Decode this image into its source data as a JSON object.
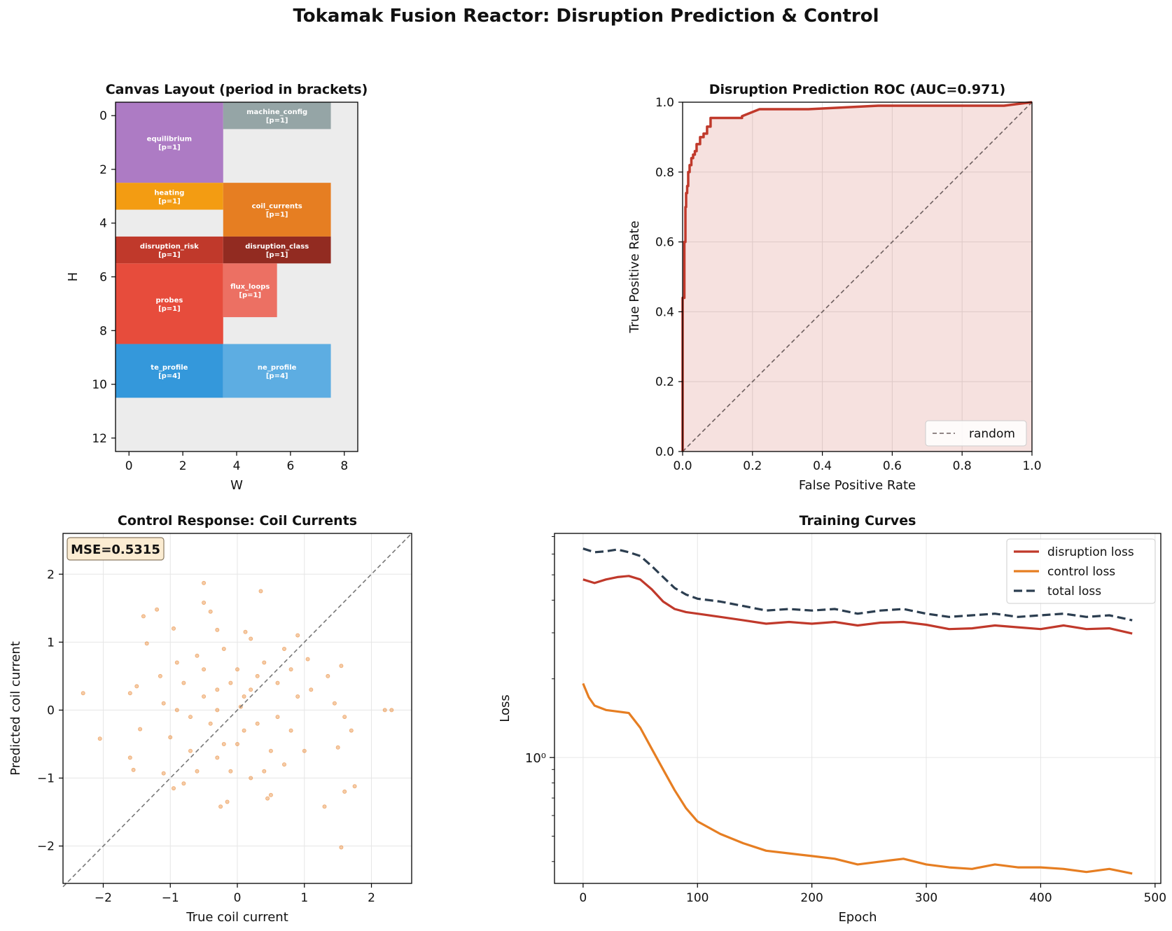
{
  "figure_title": "Tokamak Fusion Reactor: Disruption Prediction & Control",
  "chart_data": [
    {
      "type": "layout",
      "title": "Canvas Layout (period in brackets)",
      "xlabel": "W",
      "ylabel": "H",
      "xlim": [
        -0.5,
        8.5
      ],
      "ylim": [
        12.5,
        -0.5
      ],
      "xticks": [
        0,
        2,
        4,
        6,
        8
      ],
      "yticks": [
        0,
        2,
        4,
        6,
        8,
        10,
        12
      ],
      "background": "#ececec",
      "blocks": [
        {
          "name": "equilibrium",
          "period": "[p=1]",
          "x0": -0.5,
          "x1": 3.5,
          "y0": -0.5,
          "y1": 2.5,
          "color": "#ad7bc4"
        },
        {
          "name": "machine_config",
          "period": "[p=1]",
          "x0": 3.5,
          "x1": 7.5,
          "y0": -0.5,
          "y1": 0.5,
          "color": "#95a5a6"
        },
        {
          "name": "heating",
          "period": "[p=1]",
          "x0": -0.5,
          "x1": 3.5,
          "y0": 2.5,
          "y1": 3.5,
          "color": "#f39c12"
        },
        {
          "name": "coil_currents",
          "period": "[p=1]",
          "x0": 3.5,
          "x1": 7.5,
          "y0": 2.5,
          "y1": 4.5,
          "color": "#e67e22"
        },
        {
          "name": "disruption_risk",
          "period": "[p=1]",
          "x0": -0.5,
          "x1": 3.5,
          "y0": 4.5,
          "y1": 5.5,
          "color": "#c0392b"
        },
        {
          "name": "disruption_class",
          "period": "[p=1]",
          "x0": 3.5,
          "x1": 7.5,
          "y0": 4.5,
          "y1": 5.5,
          "color": "#922b21"
        },
        {
          "name": "probes",
          "period": "[p=1]",
          "x0": -0.5,
          "x1": 3.5,
          "y0": 5.5,
          "y1": 8.5,
          "color": "#e74c3c"
        },
        {
          "name": "flux_loops",
          "period": "[p=1]",
          "x0": 3.5,
          "x1": 5.5,
          "y0": 5.5,
          "y1": 7.5,
          "color": "#ec7063"
        },
        {
          "name": "te_profile",
          "period": "[p=4]",
          "x0": -0.5,
          "x1": 3.5,
          "y0": 8.5,
          "y1": 10.5,
          "color": "#3498db"
        },
        {
          "name": "ne_profile",
          "period": "[p=4]",
          "x0": 3.5,
          "x1": 7.5,
          "y0": 8.5,
          "y1": 10.5,
          "color": "#5dade2"
        }
      ]
    },
    {
      "type": "line",
      "title": "Disruption Prediction ROC (AUC=0.971)",
      "xlabel": "False Positive Rate",
      "ylabel": "True Positive Rate",
      "xlim": [
        0,
        1
      ],
      "ylim": [
        0,
        1
      ],
      "xticks": [
        0.0,
        0.2,
        0.4,
        0.6,
        0.8,
        1.0
      ],
      "yticks": [
        0.0,
        0.2,
        0.4,
        0.6,
        0.8,
        1.0
      ],
      "grid": true,
      "legend": "lower right",
      "series": [
        {
          "name": "",
          "color": "#c0392b",
          "fill": true,
          "x": [
            0,
            0,
            0.005,
            0.005,
            0.008,
            0.008,
            0.01,
            0.01,
            0.013,
            0.013,
            0.016,
            0.016,
            0.02,
            0.02,
            0.025,
            0.025,
            0.03,
            0.03,
            0.035,
            0.035,
            0.04,
            0.04,
            0.05,
            0.05,
            0.06,
            0.06,
            0.07,
            0.07,
            0.08,
            0.08,
            0.17,
            0.17,
            0.22,
            0.36,
            0.56,
            0.92,
            1.0
          ],
          "y": [
            0,
            0.44,
            0.44,
            0.6,
            0.6,
            0.7,
            0.7,
            0.74,
            0.74,
            0.76,
            0.76,
            0.8,
            0.8,
            0.82,
            0.82,
            0.84,
            0.84,
            0.85,
            0.85,
            0.86,
            0.86,
            0.88,
            0.88,
            0.9,
            0.9,
            0.91,
            0.91,
            0.93,
            0.93,
            0.955,
            0.955,
            0.96,
            0.98,
            0.98,
            0.99,
            0.99,
            1.0
          ]
        },
        {
          "name": "random",
          "color": "#6d5f5f",
          "dashed": true,
          "x": [
            0,
            1
          ],
          "y": [
            0,
            1
          ]
        }
      ]
    },
    {
      "type": "scatter",
      "title": "Control Response: Coil Currents",
      "xlabel": "True coil current",
      "ylabel": "Predicted coil current",
      "xlim": [
        -2.6,
        2.6
      ],
      "ylim": [
        -2.55,
        2.6
      ],
      "xticks": [
        -2,
        -1,
        0,
        1,
        2
      ],
      "yticks": [
        -2,
        -1,
        0,
        1,
        2
      ],
      "grid": true,
      "annotation": "MSE=0.5315",
      "color": "#e67e22",
      "points": [
        [
          -2.3,
          0.25
        ],
        [
          -2.05,
          -0.42
        ],
        [
          -1.6,
          -0.7
        ],
        [
          -1.55,
          -0.88
        ],
        [
          -1.4,
          1.38
        ],
        [
          -1.35,
          0.98
        ],
        [
          -1.2,
          1.48
        ],
        [
          -1.5,
          0.35
        ],
        [
          -1.45,
          -0.28
        ],
        [
          -1.1,
          -0.93
        ],
        [
          -1.15,
          0.5
        ],
        [
          -0.95,
          1.2
        ],
        [
          -0.5,
          1.87
        ],
        [
          -0.5,
          1.58
        ],
        [
          -0.4,
          1.45
        ],
        [
          0.35,
          1.75
        ],
        [
          1.55,
          -2.02
        ],
        [
          1.6,
          -1.2
        ],
        [
          1.75,
          -1.12
        ],
        [
          2.2,
          0.0
        ],
        [
          2.3,
          0.0
        ],
        [
          1.55,
          0.65
        ],
        [
          1.7,
          -0.3
        ],
        [
          1.3,
          -1.42
        ],
        [
          0.5,
          -1.25
        ],
        [
          -0.25,
          -1.42
        ],
        [
          -0.15,
          -1.35
        ],
        [
          0.45,
          -1.3
        ],
        [
          -0.8,
          -1.08
        ],
        [
          -0.95,
          -1.15
        ],
        [
          1.5,
          -0.55
        ],
        [
          1.05,
          0.75
        ],
        [
          1.35,
          0.5
        ],
        [
          0.9,
          1.1
        ],
        [
          -1.6,
          0.25
        ],
        [
          1.45,
          0.1
        ],
        [
          1.6,
          -0.1
        ],
        [
          -0.3,
          1.18
        ],
        [
          0.12,
          1.15
        ],
        [
          0.2,
          1.05
        ],
        [
          -0.7,
          -0.6
        ],
        [
          -0.3,
          0.3
        ],
        [
          0.3,
          -0.2
        ],
        [
          0.05,
          0.05
        ],
        [
          -0.5,
          0.2
        ],
        [
          0.6,
          0.4
        ],
        [
          -0.2,
          -0.5
        ],
        [
          0.4,
          0.7
        ],
        [
          -0.9,
          0.0
        ],
        [
          0.8,
          -0.3
        ],
        [
          0.0,
          0.6
        ],
        [
          -0.6,
          0.8
        ],
        [
          0.7,
          0.9
        ],
        [
          -0.1,
          -0.9
        ],
        [
          0.2,
          0.3
        ],
        [
          -0.4,
          -0.2
        ],
        [
          0.5,
          -0.6
        ],
        [
          -0.8,
          0.4
        ],
        [
          0.9,
          0.2
        ],
        [
          -0.3,
          -0.7
        ],
        [
          0.1,
          -0.3
        ],
        [
          0.3,
          0.5
        ],
        [
          -0.7,
          -0.1
        ],
        [
          0.6,
          -0.1
        ],
        [
          -0.5,
          0.6
        ],
        [
          0.0,
          -0.5
        ],
        [
          -0.2,
          0.9
        ],
        [
          0.8,
          0.6
        ],
        [
          -1.0,
          -0.4
        ],
        [
          1.0,
          -0.6
        ],
        [
          -0.6,
          -0.9
        ],
        [
          0.4,
          -0.9
        ],
        [
          0.2,
          -1.0
        ],
        [
          -0.9,
          0.7
        ],
        [
          1.1,
          0.3
        ],
        [
          -1.1,
          0.1
        ],
        [
          0.7,
          -0.8
        ],
        [
          -0.3,
          0.0
        ],
        [
          0.1,
          0.2
        ],
        [
          -0.1,
          0.4
        ]
      ]
    },
    {
      "type": "line",
      "title": "Training Curves",
      "xlabel": "Epoch",
      "ylabel": "Loss",
      "yscale": "log",
      "xlim": [
        -25,
        505
      ],
      "ylim": [
        0.33,
        7.2
      ],
      "xticks": [
        0,
        100,
        200,
        300,
        400,
        500
      ],
      "ytick_label": "10⁰",
      "grid": true,
      "legend": "top-right",
      "series": [
        {
          "name": "disruption loss",
          "color": "#c0392b",
          "x": [
            0,
            10,
            20,
            30,
            40,
            50,
            60,
            70,
            80,
            90,
            100,
            120,
            140,
            160,
            180,
            200,
            220,
            240,
            260,
            280,
            300,
            320,
            340,
            360,
            380,
            400,
            420,
            440,
            460,
            480
          ],
          "y": [
            4.8,
            4.65,
            4.8,
            4.9,
            4.95,
            4.8,
            4.4,
            3.95,
            3.7,
            3.6,
            3.55,
            3.45,
            3.35,
            3.25,
            3.3,
            3.25,
            3.3,
            3.2,
            3.28,
            3.3,
            3.22,
            3.1,
            3.12,
            3.2,
            3.15,
            3.1,
            3.2,
            3.1,
            3.12,
            2.98
          ]
        },
        {
          "name": "control loss",
          "color": "#e67e22",
          "x": [
            0,
            5,
            10,
            20,
            30,
            40,
            50,
            60,
            70,
            80,
            90,
            100,
            120,
            140,
            160,
            180,
            200,
            220,
            240,
            260,
            280,
            300,
            320,
            340,
            360,
            380,
            400,
            420,
            440,
            460,
            480
          ],
          "y": [
            1.92,
            1.7,
            1.58,
            1.52,
            1.5,
            1.48,
            1.3,
            1.08,
            0.9,
            0.75,
            0.64,
            0.57,
            0.51,
            0.47,
            0.44,
            0.43,
            0.42,
            0.41,
            0.39,
            0.4,
            0.41,
            0.39,
            0.38,
            0.375,
            0.39,
            0.38,
            0.38,
            0.375,
            0.365,
            0.375,
            0.36
          ]
        },
        {
          "name": "total loss",
          "color": "#2c3e50",
          "dashed": true,
          "x": [
            0,
            10,
            20,
            30,
            40,
            50,
            60,
            70,
            80,
            90,
            100,
            120,
            140,
            160,
            180,
            200,
            220,
            240,
            260,
            280,
            300,
            320,
            340,
            360,
            380,
            400,
            420,
            440,
            460,
            480
          ],
          "y": [
            6.3,
            6.1,
            6.15,
            6.25,
            6.1,
            5.9,
            5.4,
            4.9,
            4.45,
            4.2,
            4.05,
            3.95,
            3.8,
            3.65,
            3.7,
            3.65,
            3.7,
            3.55,
            3.65,
            3.7,
            3.55,
            3.45,
            3.5,
            3.55,
            3.45,
            3.5,
            3.55,
            3.45,
            3.5,
            3.35
          ]
        }
      ]
    }
  ]
}
